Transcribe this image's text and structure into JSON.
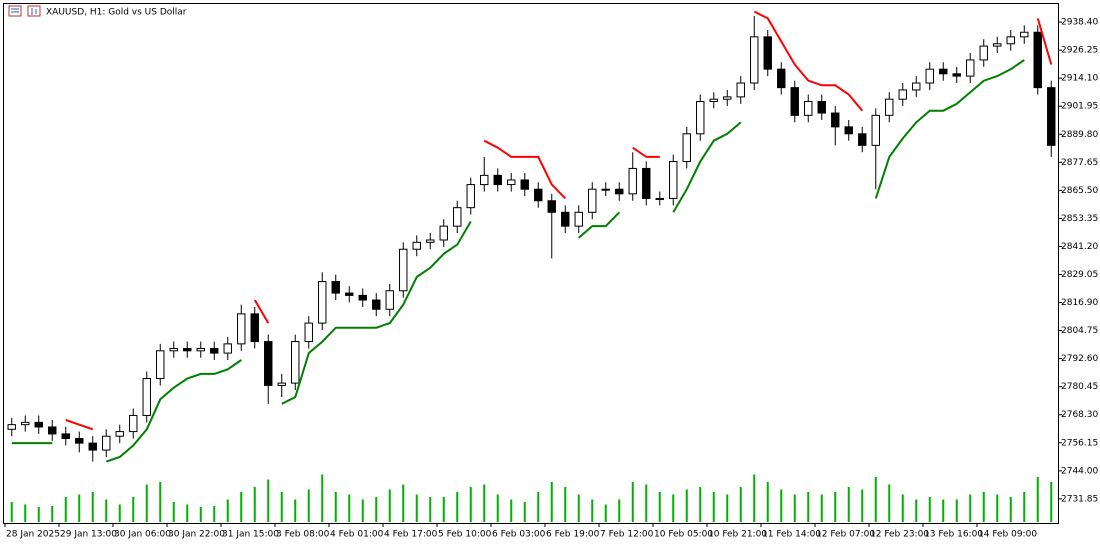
{
  "chart_data": {
    "type": "candlestick",
    "title": "XAUUSD, H1:  Gold vs US Dollar",
    "categories": [
      "28 Jan 2025",
      null,
      null,
      null,
      "29 Jan 13:00",
      null,
      null,
      null,
      "30 Jan 06:00",
      null,
      null,
      null,
      "30 Jan 22:00",
      null,
      null,
      null,
      "31 Jan 15:00",
      null,
      null,
      null,
      "3 Feb 08:00",
      null,
      null,
      null,
      "4 Feb 01:00",
      null,
      null,
      null,
      "4 Feb 17:00",
      null,
      null,
      null,
      "5 Feb 10:00",
      null,
      null,
      null,
      "6 Feb 03:00",
      null,
      null,
      null,
      "6 Feb 19:00",
      null,
      null,
      null,
      "7 Feb 12:00",
      null,
      null,
      null,
      "10 Feb 05:00",
      null,
      null,
      null,
      "10 Feb 21:00",
      null,
      null,
      null,
      "11 Feb 14:00",
      null,
      null,
      null,
      "12 Feb 07:00",
      null,
      null,
      null,
      "12 Feb 23:00",
      null,
      null,
      null,
      "13 Feb 16:00",
      null,
      null,
      null,
      "14 Feb 09:00",
      null,
      null,
      null,
      null,
      null
    ],
    "open": [
      2762,
      2764,
      2765,
      2763,
      2760,
      2758,
      2756,
      2753,
      2759,
      2761,
      2768,
      2784,
      2796,
      2797,
      2796,
      2797,
      2795,
      2799,
      2812,
      2800,
      2781,
      2782,
      2800,
      2808,
      2826,
      2821,
      2820,
      2818,
      2814,
      2822,
      2840,
      2843,
      2844,
      2850,
      2858,
      2868,
      2872,
      2868,
      2870,
      2866,
      2861,
      2856,
      2850,
      2856,
      2866,
      2866,
      2864,
      2875,
      2862,
      2862,
      2878,
      2890,
      2904,
      2905,
      2906,
      2912,
      2932,
      2918,
      2910,
      2898,
      2904,
      2899,
      2893,
      2890,
      2885,
      2898,
      2905,
      2909,
      2912,
      2918,
      2916,
      2915,
      2922,
      2928,
      2929,
      2932,
      2934,
      2910
    ],
    "high": [
      2767,
      2768,
      2768,
      2766,
      2763,
      2761,
      2759,
      2762,
      2764,
      2771,
      2787,
      2799,
      2800,
      2800,
      2800,
      2800,
      2802,
      2816,
      2815,
      2803,
      2786,
      2803,
      2811,
      2830,
      2829,
      2824,
      2823,
      2821,
      2825,
      2843,
      2846,
      2847,
      2853,
      2861,
      2871,
      2880,
      2875,
      2873,
      2873,
      2869,
      2864,
      2859,
      2859,
      2869,
      2869,
      2869,
      2882,
      2878,
      2865,
      2881,
      2893,
      2907,
      2908,
      2909,
      2915,
      2941,
      2935,
      2921,
      2913,
      2907,
      2907,
      2902,
      2896,
      2893,
      2901,
      2908,
      2912,
      2915,
      2921,
      2921,
      2919,
      2925,
      2931,
      2932,
      2935,
      2937,
      2937,
      2913
    ],
    "low": [
      2759,
      2761,
      2760,
      2757,
      2755,
      2752,
      2748,
      2750,
      2756,
      2758,
      2765,
      2781,
      2793,
      2793,
      2793,
      2792,
      2792,
      2796,
      2797,
      2773,
      2776,
      2779,
      2797,
      2805,
      2818,
      2817,
      2815,
      2811,
      2811,
      2819,
      2837,
      2840,
      2841,
      2847,
      2855,
      2865,
      2865,
      2865,
      2863,
      2858,
      2836,
      2847,
      2847,
      2853,
      2863,
      2861,
      2861,
      2859,
      2859,
      2859,
      2875,
      2887,
      2901,
      2902,
      2903,
      2909,
      2915,
      2907,
      2895,
      2895,
      2896,
      2885,
      2887,
      2882,
      2866,
      2895,
      2902,
      2906,
      2909,
      2913,
      2912,
      2912,
      2919,
      2925,
      2926,
      2929,
      2907,
      2880
    ],
    "close": [
      2764,
      2765,
      2763,
      2760,
      2758,
      2756,
      2753,
      2759,
      2761,
      2768,
      2784,
      2796,
      2797,
      2796,
      2797,
      2795,
      2799,
      2812,
      2800,
      2781,
      2782,
      2800,
      2808,
      2826,
      2821,
      2820,
      2818,
      2814,
      2822,
      2840,
      2843,
      2844,
      2850,
      2858,
      2868,
      2872,
      2868,
      2870,
      2866,
      2861,
      2856,
      2850,
      2856,
      2866,
      2866,
      2864,
      2875,
      2862,
      2862,
      2878,
      2890,
      2904,
      2905,
      2906,
      2912,
      2932,
      2918,
      2910,
      2898,
      2904,
      2899,
      2893,
      2890,
      2885,
      2898,
      2905,
      2909,
      2912,
      2918,
      2916,
      2915,
      2922,
      2928,
      2929,
      2932,
      2934,
      2910,
      2885
    ],
    "bull_color": "#ffffff",
    "bear_color": "#000000",
    "wick_color": "#000000",
    "lines": [
      {
        "color": "#008000",
        "values": [
          2756,
          2756,
          2756,
          2756,
          null,
          null,
          null,
          2748,
          2750,
          2755,
          2762,
          2775,
          2780,
          2784,
          2786,
          2786,
          2788,
          2792,
          null,
          null,
          2773,
          2776,
          2795,
          2800,
          2806,
          2806,
          2806,
          2806,
          2808,
          2816,
          2828,
          2832,
          2838,
          2842,
          2852,
          null,
          null,
          null,
          null,
          null,
          null,
          null,
          2845,
          2850,
          2850,
          2856,
          null,
          null,
          null,
          2856,
          2866,
          2878,
          2887,
          2890,
          2895,
          null,
          null,
          null,
          null,
          null,
          null,
          null,
          null,
          null,
          2862,
          2880,
          2888,
          2895,
          2900,
          2900,
          2903,
          2908,
          2913,
          2915,
          2918,
          2922,
          null,
          null
        ]
      },
      {
        "color": "#ff0000",
        "values": [
          null,
          null,
          null,
          null,
          2766,
          2764,
          2762,
          null,
          null,
          null,
          null,
          null,
          null,
          null,
          null,
          null,
          null,
          null,
          2818,
          2808,
          null,
          null,
          null,
          null,
          null,
          null,
          null,
          null,
          null,
          null,
          null,
          null,
          null,
          null,
          null,
          2887,
          2884,
          2880,
          2880,
          2880,
          2868,
          2862,
          null,
          null,
          null,
          null,
          2884,
          2880,
          2880,
          null,
          null,
          null,
          null,
          null,
          null,
          2943,
          2940,
          2930,
          2920,
          2913,
          2911,
          2911,
          2907,
          2900,
          null,
          null,
          null,
          null,
          null,
          null,
          null,
          null,
          null,
          null,
          null,
          null,
          2940,
          2920
        ]
      }
    ],
    "volume": {
      "color": "#00b000",
      "vlim": [
        0,
        24000
      ],
      "values": [
        4000,
        3500,
        3000,
        3200,
        5000,
        5500,
        6000,
        4500,
        3500,
        5000,
        7500,
        8000,
        4000,
        3500,
        3000,
        3200,
        4500,
        6000,
        7000,
        8500,
        6000,
        4500,
        6500,
        9500,
        6000,
        5500,
        4500,
        5000,
        6500,
        7500,
        5500,
        5000,
        5000,
        6000,
        7000,
        7500,
        5500,
        4500,
        4000,
        6000,
        8000,
        7000,
        5500,
        4500,
        3500,
        4500,
        8000,
        7500,
        6000,
        5500,
        6500,
        7000,
        6000,
        5500,
        7000,
        9500,
        8000,
        6500,
        5500,
        6000,
        5500,
        6000,
        7000,
        6500,
        9000,
        7500,
        5500,
        4500,
        5000,
        4500,
        4500,
        5500,
        6000,
        5500,
        5000,
        6000,
        9000,
        8000
      ]
    },
    "ylim": [
      2721.4,
      2945.8
    ],
    "yticks": [
      {
        "value": 2938.4,
        "label": "2938.40"
      },
      2926.25,
      {
        "value": 2914.1,
        "label": "2914.10"
      },
      2901.95,
      {
        "value": 2889.8,
        "label": "2889.80"
      },
      2877.65,
      {
        "value": 2865.5,
        "label": "2865.50"
      },
      2853.35,
      {
        "value": 2841.2,
        "label": "2841.20"
      },
      2829.05,
      {
        "value": 2816.9,
        "label": "2816.90"
      },
      2804.75,
      {
        "value": 2792.6,
        "label": "2792.60"
      },
      2780.45,
      {
        "value": 2768.3,
        "label": "2768.30"
      },
      2756.15,
      {
        "value": 2744,
        "label": "2744.00"
      },
      2731.85
    ]
  }
}
